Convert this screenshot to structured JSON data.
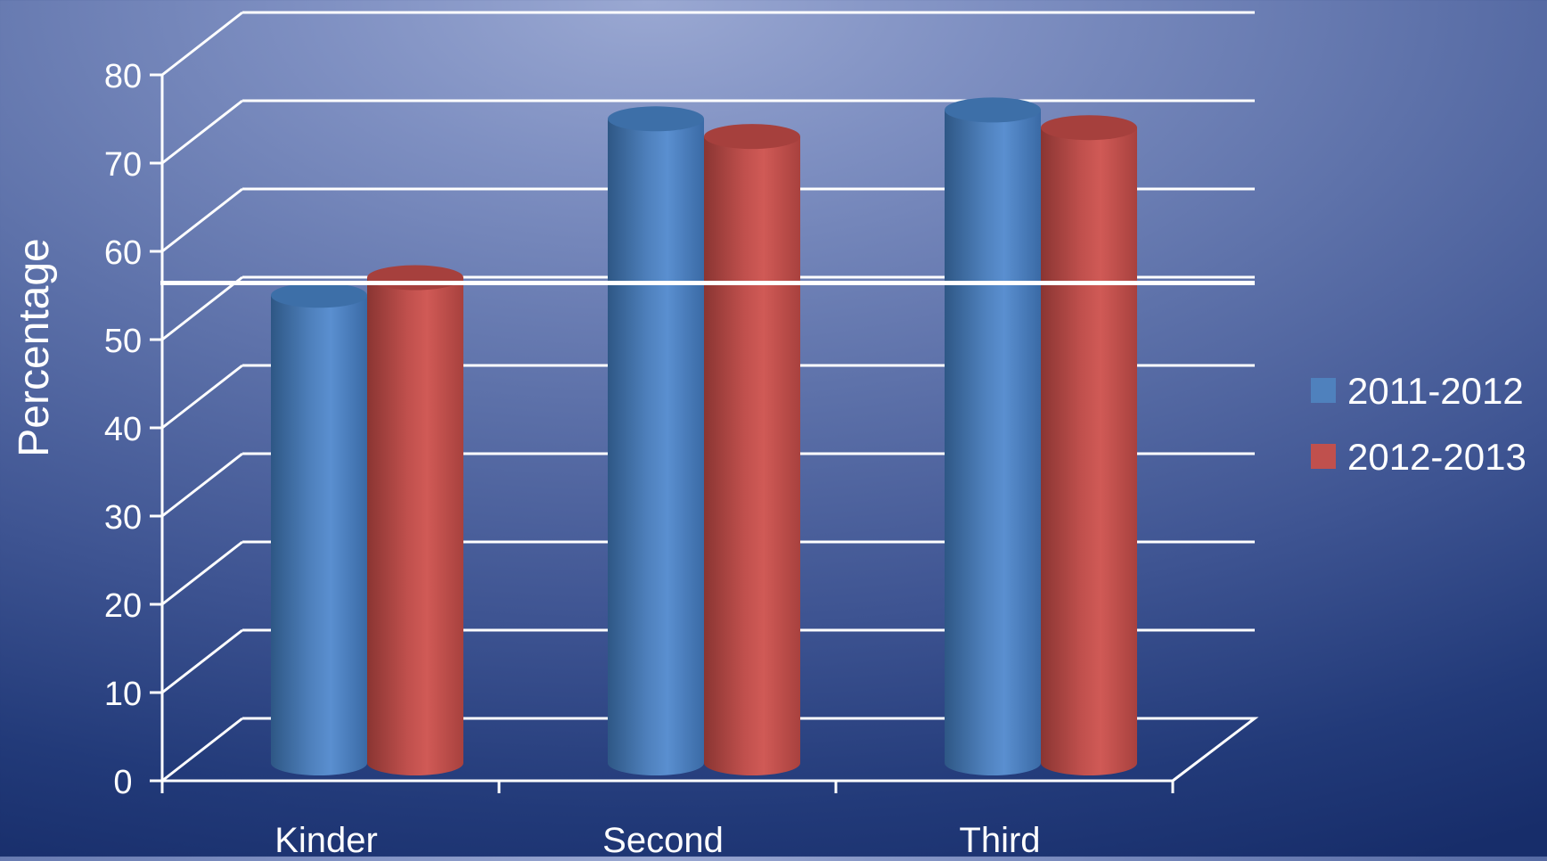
{
  "chart_data": {
    "type": "bar",
    "style": "3d-cylinder",
    "categories": [
      "Kinder",
      "Second",
      "Third"
    ],
    "series": [
      {
        "name": "2011-2012",
        "values": [
          53,
          73,
          74
        ],
        "color": "#4f81bd"
      },
      {
        "name": "2012-2013",
        "values": [
          55,
          71,
          72
        ],
        "color": "#c0504d"
      }
    ],
    "ylabel": "Percentage",
    "xlabel": "",
    "ylim": [
      0,
      80
    ],
    "yticks": [
      0,
      10,
      20,
      30,
      40,
      50,
      60,
      70,
      80
    ],
    "reference_line": 55,
    "grid": true,
    "legend_position": "right"
  },
  "colors": {
    "background_light": "#9aa8d2",
    "background_dark": "#172d6a",
    "grid": "#ffffff",
    "text": "#ffffff"
  }
}
